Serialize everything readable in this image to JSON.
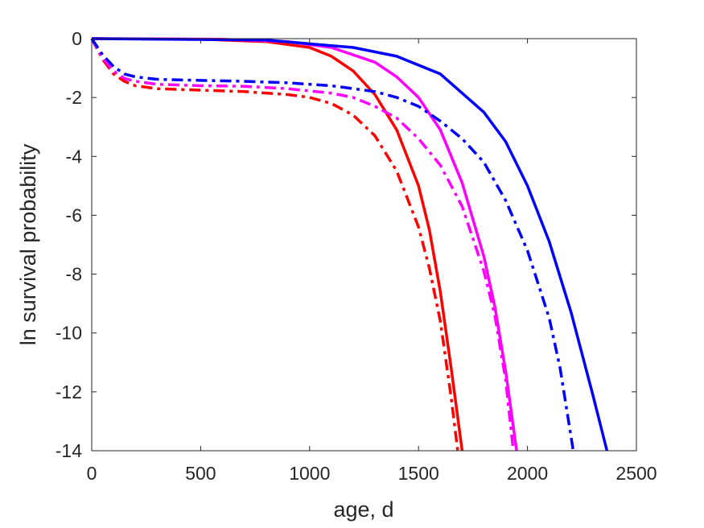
{
  "chart_data": {
    "type": "line",
    "title": "",
    "xlabel": "age, d",
    "ylabel": "ln survival probability",
    "xlim": [
      0,
      2500
    ],
    "ylim": [
      -14,
      0
    ],
    "xticks": [
      0,
      500,
      1000,
      1500,
      2000,
      2500
    ],
    "yticks": [
      0,
      -2,
      -4,
      -6,
      -8,
      -10,
      -12,
      -14
    ],
    "xtick_labels": [
      "0",
      "500",
      "1000",
      "1500",
      "2000",
      "2500"
    ],
    "ytick_labels": [
      "0",
      "-2",
      "-4",
      "-6",
      "-8",
      "-10",
      "-12",
      "-14"
    ],
    "grid": false,
    "legend": "none",
    "series": [
      {
        "color": "#ff0000",
        "style": "solid",
        "x": [
          0,
          500,
          800,
          1000,
          1100,
          1200,
          1300,
          1400,
          1500,
          1550,
          1600,
          1650,
          1700
        ],
        "y": [
          0,
          -0.02,
          -0.1,
          -0.3,
          -0.6,
          -1.1,
          -1.9,
          -3.1,
          -5.0,
          -6.5,
          -8.6,
          -11.2,
          -14.0
        ]
      },
      {
        "color": "#ff00ff",
        "style": "solid",
        "x": [
          0,
          600,
          900,
          1100,
          1300,
          1400,
          1500,
          1600,
          1700,
          1800,
          1850,
          1900,
          1950
        ],
        "y": [
          0,
          -0.02,
          -0.1,
          -0.3,
          -0.8,
          -1.3,
          -2.0,
          -3.1,
          -4.9,
          -7.4,
          -9.1,
          -11.3,
          -14.0
        ]
      },
      {
        "color": "#0000ff",
        "style": "solid",
        "x": [
          0,
          800,
          1200,
          1400,
          1600,
          1800,
          1900,
          2000,
          2100,
          2200,
          2300,
          2365
        ],
        "y": [
          0,
          -0.05,
          -0.3,
          -0.6,
          -1.2,
          -2.5,
          -3.5,
          -5.0,
          -6.9,
          -9.3,
          -12.1,
          -14.0
        ]
      },
      {
        "color": "#ff0000",
        "style": "dashdot",
        "x": [
          0,
          50,
          100,
          150,
          200,
          300,
          500,
          700,
          900,
          1000,
          1100,
          1200,
          1300,
          1400,
          1500,
          1550,
          1600,
          1650,
          1680
        ],
        "y": [
          0,
          -0.7,
          -1.2,
          -1.45,
          -1.6,
          -1.7,
          -1.75,
          -1.8,
          -1.9,
          -2.0,
          -2.2,
          -2.6,
          -3.3,
          -4.5,
          -6.4,
          -7.8,
          -9.6,
          -12.2,
          -14.0
        ]
      },
      {
        "color": "#ff00ff",
        "style": "dashdot",
        "x": [
          0,
          50,
          100,
          150,
          200,
          300,
          500,
          700,
          900,
          1100,
          1200,
          1300,
          1400,
          1500,
          1600,
          1700,
          1800,
          1850,
          1900,
          1935
        ],
        "y": [
          0,
          -0.65,
          -1.1,
          -1.35,
          -1.45,
          -1.55,
          -1.6,
          -1.62,
          -1.7,
          -1.85,
          -2.0,
          -2.3,
          -2.7,
          -3.4,
          -4.3,
          -5.7,
          -7.9,
          -9.4,
          -11.6,
          -14.0
        ]
      },
      {
        "color": "#0000ff",
        "style": "dashdot",
        "x": [
          0,
          50,
          100,
          150,
          200,
          300,
          500,
          700,
          900,
          1100,
          1300,
          1400,
          1500,
          1600,
          1700,
          1800,
          1900,
          2000,
          2100,
          2150,
          2210
        ],
        "y": [
          0,
          -0.55,
          -0.95,
          -1.2,
          -1.3,
          -1.38,
          -1.42,
          -1.45,
          -1.5,
          -1.6,
          -1.8,
          -2.0,
          -2.3,
          -2.8,
          -3.4,
          -4.2,
          -5.5,
          -7.2,
          -9.5,
          -11.2,
          -14.0
        ]
      }
    ]
  }
}
